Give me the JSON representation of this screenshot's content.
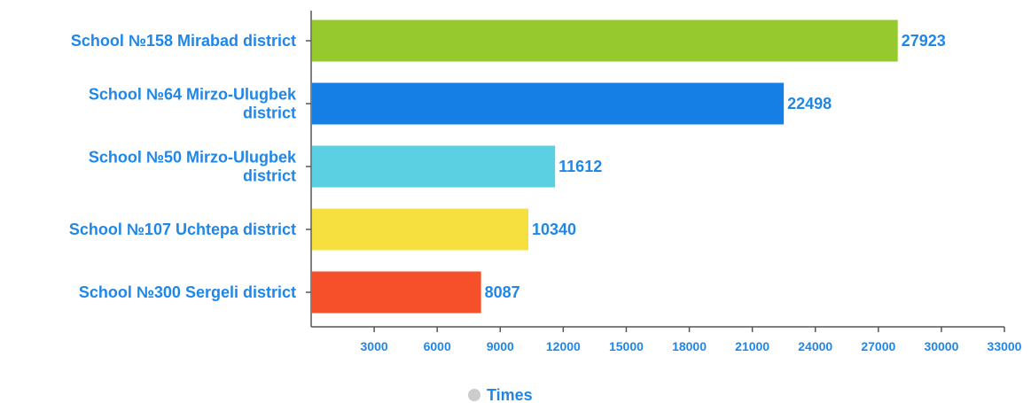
{
  "chart_data": {
    "type": "bar",
    "orientation": "horizontal",
    "categories": [
      [
        "School №158 Mirabad district"
      ],
      [
        "School №64 Mirzo-Ulugbek",
        "district"
      ],
      [
        "School №50 Mirzo-Ulugbek",
        "district"
      ],
      [
        "School №107 Uchtepa district"
      ],
      [
        "School №300 Sergeli district"
      ]
    ],
    "values": [
      27923,
      22498,
      11612,
      10340,
      8087
    ],
    "colors": [
      "#95c92d",
      "#157fe6",
      "#5bd0e3",
      "#f5e040",
      "#f5502a"
    ],
    "xlim": [
      0,
      33000
    ],
    "xticks": [
      3000,
      6000,
      9000,
      12000,
      15000,
      18000,
      21000,
      24000,
      27000,
      30000,
      33000
    ],
    "legend": {
      "entries": [
        {
          "name": "Times",
          "color": "#cccccc"
        }
      ],
      "position": "bottom-center"
    },
    "grid": false,
    "text_color": "#1e87e8",
    "axis_color": "#555555"
  }
}
